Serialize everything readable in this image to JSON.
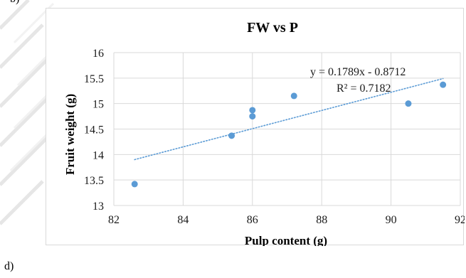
{
  "panel_labels": {
    "top": "b)",
    "bottom": "d)"
  },
  "colors": {
    "point": "#5b9bd5",
    "trendline": "#5b9bd5",
    "grid": "#d9d9d9",
    "frame": "#d9d9d9"
  },
  "chart_data": {
    "type": "scatter",
    "title": "FW vs P",
    "xlabel": "Pulp content (g)",
    "ylabel": "Fruit weight (g)",
    "xlim": [
      82,
      92
    ],
    "ylim": [
      13,
      16
    ],
    "xticks": [
      82,
      84,
      86,
      88,
      90,
      92
    ],
    "yticks": [
      13,
      13.5,
      14,
      14.5,
      15,
      15.5,
      16
    ],
    "xtick_labels": [
      "82",
      "84",
      "86",
      "88",
      "90",
      "92"
    ],
    "ytick_labels": [
      "13",
      "13.5",
      "14",
      "14.5",
      "15",
      "15.5",
      "16"
    ],
    "grid": true,
    "points": [
      {
        "x": 82.6,
        "y": 13.42
      },
      {
        "x": 85.4,
        "y": 14.37
      },
      {
        "x": 86.0,
        "y": 14.75
      },
      {
        "x": 86.0,
        "y": 14.87
      },
      {
        "x": 87.2,
        "y": 15.15
      },
      {
        "x": 90.5,
        "y": 15.0
      },
      {
        "x": 91.5,
        "y": 15.37
      }
    ],
    "trendline": {
      "type": "linear",
      "x_range": [
        82.6,
        91.5
      ],
      "y_start": 13.9,
      "y_end": 15.49,
      "style": "dotted"
    },
    "annotations": {
      "equation": "y = 0.1789x  - 0.8712",
      "r_squared": "R² = 0.7182"
    }
  }
}
